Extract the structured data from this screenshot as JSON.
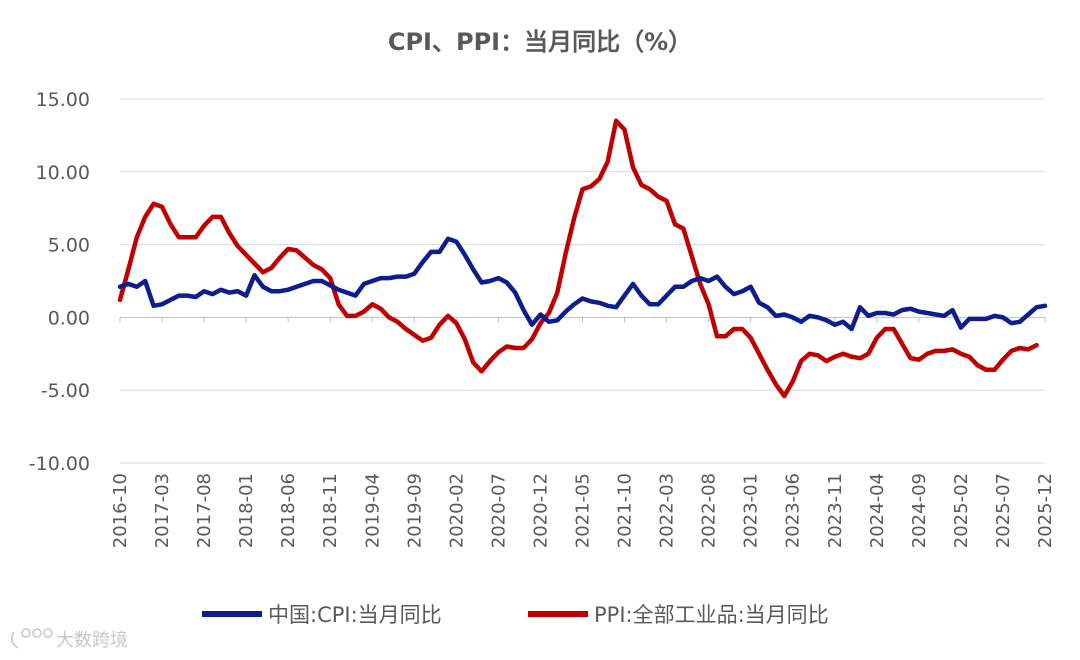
{
  "chart_data": {
    "type": "line",
    "title": "CPI、PPI：当月同比（%）",
    "ylim": [
      -10,
      15
    ],
    "yticks": [
      15,
      10,
      5,
      0,
      -5,
      -10
    ],
    "ytick_labels": [
      "15.00",
      "10.00",
      "5.00",
      "0.00",
      "-5.00",
      "-10.00"
    ],
    "xtick_labels": [
      "2016-10",
      "2017-03",
      "2017-08",
      "2018-01",
      "2018-06",
      "2018-11",
      "2019-04",
      "2019-09",
      "2020-02",
      "2020-07",
      "2020-12",
      "2021-05",
      "2021-10",
      "2022-03",
      "2022-08",
      "2023-01",
      "2023-06",
      "2023-11",
      "2024-04",
      "2024-09",
      "2025-02",
      "2025-07",
      "2025-12"
    ],
    "x_start": "2016-10",
    "x_end": "2025-12",
    "grid": "horizontal",
    "legend_position": "bottom",
    "series": [
      {
        "name": "中国:CPI:当月同比",
        "color": "#0d1d8c",
        "values": [
          2.1,
          2.3,
          2.1,
          2.5,
          0.8,
          0.9,
          1.2,
          1.5,
          1.5,
          1.4,
          1.8,
          1.6,
          1.9,
          1.7,
          1.8,
          1.5,
          2.9,
          2.1,
          1.8,
          1.8,
          1.9,
          2.1,
          2.3,
          2.5,
          2.5,
          2.2,
          1.9,
          1.7,
          1.5,
          2.3,
          2.5,
          2.7,
          2.7,
          2.8,
          2.8,
          3.0,
          3.8,
          4.5,
          4.5,
          5.4,
          5.2,
          4.3,
          3.3,
          2.4,
          2.5,
          2.7,
          2.4,
          1.7,
          0.5,
          -0.5,
          0.2,
          -0.3,
          -0.2,
          0.4,
          0.9,
          1.3,
          1.1,
          1.0,
          0.8,
          0.7,
          1.5,
          2.3,
          1.5,
          0.9,
          0.9,
          1.5,
          2.1,
          2.1,
          2.5,
          2.7,
          2.5,
          2.8,
          2.1,
          1.6,
          1.8,
          2.1,
          1.0,
          0.7,
          0.1,
          0.2,
          0.0,
          -0.3,
          0.1,
          0.0,
          -0.2,
          -0.5,
          -0.3,
          -0.8,
          0.7,
          0.1,
          0.3,
          0.3,
          0.2,
          0.5,
          0.6,
          0.4,
          0.3,
          0.2,
          0.1,
          0.5,
          -0.7,
          -0.1,
          -0.1,
          -0.1,
          0.1,
          0.0,
          -0.4,
          -0.3,
          0.2,
          0.7,
          0.8
        ]
      },
      {
        "name": "PPI:全部工业品:当月同比",
        "color": "#c00000",
        "values": [
          1.2,
          3.3,
          5.5,
          6.9,
          7.8,
          7.6,
          6.4,
          5.5,
          5.5,
          5.5,
          6.3,
          6.9,
          6.9,
          5.8,
          4.9,
          4.3,
          3.7,
          3.1,
          3.4,
          4.1,
          4.7,
          4.6,
          4.1,
          3.6,
          3.3,
          2.7,
          0.9,
          0.1,
          0.1,
          0.4,
          0.9,
          0.6,
          0.0,
          -0.3,
          -0.8,
          -1.2,
          -1.6,
          -1.4,
          -0.5,
          0.1,
          -0.4,
          -1.5,
          -3.1,
          -3.7,
          -3.0,
          -2.4,
          -2.0,
          -2.1,
          -2.1,
          -1.5,
          -0.4,
          0.3,
          1.7,
          4.4,
          6.8,
          8.8,
          9.0,
          9.5,
          10.7,
          13.5,
          12.9,
          10.3,
          9.1,
          8.8,
          8.3,
          8.0,
          6.4,
          6.1,
          4.2,
          2.3,
          0.9,
          -1.3,
          -1.3,
          -0.8,
          -0.8,
          -1.4,
          -2.5,
          -3.6,
          -4.6,
          -5.4,
          -4.4,
          -3.0,
          -2.5,
          -2.6,
          -3.0,
          -2.7,
          -2.5,
          -2.7,
          -2.8,
          -2.5,
          -1.4,
          -0.8,
          -0.8,
          -1.8,
          -2.8,
          -2.9,
          -2.5,
          -2.3,
          -2.3,
          -2.2,
          -2.5,
          -2.7,
          -3.3,
          -3.6,
          -3.6,
          -2.9,
          -2.3,
          -2.1,
          -2.2,
          -1.9
        ]
      }
    ]
  },
  "watermark": {
    "text": "大数跨境"
  }
}
